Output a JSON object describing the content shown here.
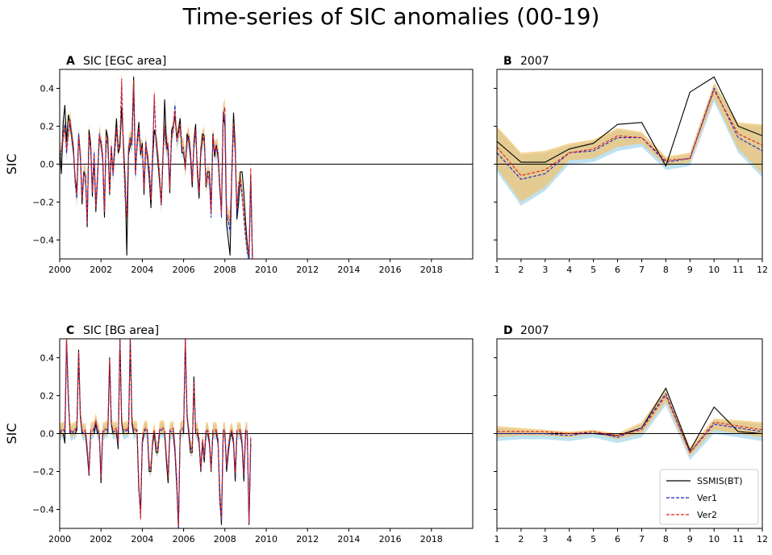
{
  "title": "Time-series of SIC anomalies (00-19)",
  "colors": {
    "ssmis": "#000000",
    "ver1": "#1f1fcc",
    "ver2": "#e0201c",
    "band_ver1": "#a8d8ee",
    "band_ver2": "#f2c26a",
    "band_overlap": "#c9b36c"
  },
  "legend": [
    {
      "label": "SSMIS(BT)",
      "style": "solid",
      "color_key": "ssmis"
    },
    {
      "label": "Ver1",
      "style": "dashed",
      "color_key": "ver1"
    },
    {
      "label": "Ver2",
      "style": "dashed",
      "color_key": "ver2"
    }
  ],
  "chart_data": [
    {
      "id": "A",
      "type": "line",
      "letter": "A",
      "title": "SIC [EGC area]",
      "ylabel": "SIC",
      "xlim": [
        2000,
        2020
      ],
      "ylim": [
        -0.5,
        0.5
      ],
      "xticks": [
        2000,
        2002,
        2004,
        2006,
        2008,
        2010,
        2012,
        2014,
        2016,
        2018
      ],
      "yticks": [
        -0.4,
        -0.2,
        0.0,
        0.2,
        0.4
      ],
      "ytick_labels": [
        "−0.4",
        "−0.2",
        "0.0",
        "0.2",
        "0.4"
      ],
      "x_start": 2000,
      "x_step": 0.0833333,
      "series": [
        {
          "name": "SSMIS(BT)",
          "values": [
            0.08,
            -0.05,
            0.22,
            0.31,
            0.12,
            0.26,
            0.21,
            0.14,
            0.06,
            -0.08,
            -0.14,
            0.15,
            0.05,
            -0.21,
            -0.04,
            -0.06,
            -0.33,
            0.18,
            0.11,
            -0.17,
            0.03,
            -0.25,
            -0.08,
            0.14,
            0.12,
            0.03,
            -0.28,
            0.18,
            0.14,
            -0.16,
            0.08,
            -0.04,
            0.1,
            0.24,
            0.06,
            0.09,
            0.3,
            0.12,
            -0.08,
            -0.48,
            0.05,
            0.1,
            0.14,
            0.46,
            -0.04,
            0.12,
            0.22,
            0.05,
            0.11,
            -0.16,
            0.1,
            0.05,
            -0.07,
            -0.23,
            0.02,
            0.18,
            0.14,
            0.02,
            -0.09,
            -0.21,
            0.03,
            0.34,
            0.12,
            0.07,
            -0.15,
            0.18,
            0.2,
            0.25,
            0.14,
            0.18,
            0.24,
            0.06,
            0.06,
            -0.02,
            0.16,
            0.13,
            0.04,
            -0.12,
            0.12,
            0.21,
            -0.05,
            -0.18,
            0.06,
            0.16,
            0.15,
            -0.12,
            -0.04,
            -0.04,
            -0.24,
            0.16,
            0.04,
            0.1,
            0.04,
            -0.13,
            -0.24,
            0.26,
            0.2,
            -0.32,
            -0.4,
            -0.48,
            -0.05,
            0.27,
            0.1,
            -0.29,
            -0.2,
            -0.04,
            -0.04,
            -0.15,
            -0.3,
            -0.42,
            -0.5,
            -0.05,
            -0.49
          ]
        },
        {
          "name": "Ver1",
          "values": [
            0.04,
            0.06,
            0.14,
            0.21,
            0.06,
            0.17,
            0.22,
            0.16,
            0.08,
            -0.1,
            -0.18,
            0.16,
            0.04,
            -0.17,
            -0.06,
            -0.05,
            -0.3,
            0.14,
            0.08,
            -0.14,
            0.06,
            -0.22,
            -0.06,
            0.16,
            0.1,
            0.04,
            -0.24,
            0.13,
            0.1,
            -0.14,
            0.1,
            -0.06,
            0.07,
            0.18,
            0.09,
            0.12,
            0.41,
            0.08,
            -0.18,
            -0.26,
            0.08,
            0.14,
            0.1,
            0.4,
            -0.06,
            0.1,
            0.18,
            0.08,
            0.08,
            -0.12,
            0.12,
            0.02,
            -0.02,
            -0.18,
            0.06,
            0.35,
            0.1,
            0.05,
            -0.05,
            -0.22,
            0.05,
            0.18,
            0.08,
            0.1,
            -0.12,
            0.14,
            0.18,
            0.31,
            0.12,
            0.16,
            0.2,
            0.08,
            0.08,
            -0.02,
            0.12,
            0.14,
            0.06,
            -0.08,
            0.1,
            0.17,
            -0.02,
            -0.14,
            0.08,
            0.12,
            0.14,
            -0.1,
            -0.06,
            -0.08,
            -0.28,
            0.14,
            0.06,
            0.08,
            0.06,
            -0.1,
            -0.28,
            0.28,
            0.25,
            -0.28,
            -0.3,
            -0.35,
            -0.08,
            0.2,
            0.06,
            -0.26,
            -0.12,
            -0.1,
            -0.16,
            -0.28,
            -0.38,
            -0.46,
            -0.5,
            -0.08,
            -0.5
          ]
        },
        {
          "name": "Ver2",
          "values": [
            0.06,
            0.07,
            0.16,
            0.19,
            0.08,
            0.16,
            0.24,
            0.15,
            0.09,
            -0.09,
            -0.16,
            0.14,
            0.05,
            -0.18,
            -0.05,
            -0.06,
            -0.31,
            0.16,
            0.09,
            -0.15,
            0.05,
            -0.23,
            -0.07,
            0.15,
            0.11,
            0.05,
            -0.25,
            0.15,
            0.11,
            -0.15,
            0.09,
            -0.05,
            0.08,
            0.19,
            0.08,
            0.11,
            0.45,
            0.09,
            -0.15,
            -0.28,
            0.09,
            0.13,
            0.11,
            0.44,
            -0.05,
            0.11,
            0.19,
            0.07,
            0.09,
            -0.13,
            0.11,
            0.03,
            -0.03,
            -0.19,
            0.05,
            0.37,
            0.11,
            0.06,
            -0.06,
            -0.21,
            0.06,
            0.2,
            0.09,
            0.11,
            -0.13,
            0.15,
            0.19,
            0.28,
            0.13,
            0.17,
            0.21,
            0.09,
            0.09,
            -0.03,
            0.13,
            0.15,
            0.07,
            -0.09,
            0.11,
            0.18,
            -0.03,
            -0.15,
            0.09,
            0.13,
            0.15,
            -0.11,
            -0.05,
            -0.07,
            -0.26,
            0.15,
            0.07,
            0.09,
            0.07,
            -0.11,
            -0.26,
            0.27,
            0.3,
            -0.26,
            -0.28,
            -0.3,
            -0.06,
            0.22,
            0.07,
            -0.24,
            -0.1,
            -0.08,
            -0.14,
            -0.26,
            -0.36,
            -0.44,
            -0.48,
            -0.02,
            -0.5
          ]
        }
      ],
      "band_spread": 0.05
    },
    {
      "id": "B",
      "type": "line",
      "letter": "B",
      "title": "2007",
      "xlim": [
        1,
        12
      ],
      "ylim": [
        -0.5,
        0.5
      ],
      "xticks": [
        1,
        2,
        3,
        4,
        5,
        6,
        7,
        8,
        9,
        10,
        11,
        12
      ],
      "yticks": [
        -0.4,
        -0.2,
        0.0,
        0.2,
        0.4
      ],
      "x": [
        1,
        2,
        3,
        4,
        5,
        6,
        7,
        8,
        9,
        10,
        11,
        12
      ],
      "series": [
        {
          "name": "SSMIS(BT)",
          "values": [
            0.12,
            0.01,
            0.01,
            0.08,
            0.11,
            0.21,
            0.22,
            -0.01,
            0.38,
            0.46,
            0.2,
            0.15
          ]
        },
        {
          "name": "Ver1",
          "values": [
            0.06,
            -0.08,
            -0.05,
            0.06,
            0.07,
            0.14,
            0.14,
            0.01,
            0.03,
            0.4,
            0.14,
            0.07
          ]
        },
        {
          "name": "Ver2",
          "values": [
            0.09,
            -0.06,
            -0.03,
            0.06,
            0.08,
            0.15,
            0.14,
            0.02,
            0.03,
            0.39,
            0.16,
            0.1
          ]
        }
      ],
      "band_upper": [
        0.2,
        0.06,
        0.07,
        0.11,
        0.13,
        0.19,
        0.17,
        0.04,
        0.06,
        0.43,
        0.22,
        0.21
      ],
      "band_lower": [
        -0.02,
        -0.2,
        -0.12,
        0.02,
        0.03,
        0.09,
        0.11,
        -0.01,
        0.01,
        0.35,
        0.08,
        -0.05
      ]
    },
    {
      "id": "C",
      "type": "line",
      "letter": "C",
      "title": "SIC [BG area]",
      "ylabel": "SIC",
      "xlim": [
        2000,
        2020
      ],
      "ylim": [
        -0.5,
        0.5
      ],
      "xticks": [
        2000,
        2002,
        2004,
        2006,
        2008,
        2010,
        2012,
        2014,
        2016,
        2018
      ],
      "yticks": [
        -0.4,
        -0.2,
        0.0,
        0.2,
        0.4
      ],
      "ytick_labels": [
        "−0.4",
        "−0.2",
        "0.0",
        "0.2",
        "0.4"
      ],
      "x_start": 2000,
      "x_step": 0.0833333,
      "series": [
        {
          "name": "SSMIS(BT)",
          "values": [
            0.0,
            0.0,
            0.0,
            -0.05,
            0.5,
            0.2,
            0.0,
            0.0,
            0.0,
            0.0,
            0.02,
            0.44,
            0.1,
            0.0,
            0.0,
            0.0,
            -0.1,
            -0.22,
            0.0,
            0.0,
            0.0,
            0.05,
            0.0,
            0.0,
            -0.26,
            0.0,
            0.0,
            0.0,
            0.0,
            0.4,
            0.05,
            0.0,
            0.0,
            0.0,
            -0.08,
            0.5,
            0.06,
            0.0,
            0.0,
            0.0,
            0.0,
            0.5,
            0.05,
            0.0,
            0.0,
            0.0,
            -0.3,
            -0.4,
            -0.05,
            0.0,
            0.0,
            0.0,
            -0.2,
            -0.2,
            -0.05,
            0.0,
            -0.1,
            -0.1,
            0.0,
            0.0,
            0.0,
            0.0,
            -0.15,
            -0.26,
            0.0,
            0.0,
            0.0,
            -0.1,
            -0.28,
            -0.5,
            0.0,
            0.0,
            0.0,
            0.5,
            0.1,
            0.0,
            -0.1,
            -0.1,
            0.3,
            0.0,
            0.0,
            -0.05,
            -0.2,
            -0.05,
            -0.15,
            0.0,
            0.0,
            -0.05,
            -0.2,
            0.0,
            0.0,
            0.0,
            -0.05,
            -0.3,
            -0.48,
            0.0,
            0.0,
            -0.2,
            -0.1,
            -0.02,
            0.0,
            -0.05,
            -0.25,
            0.0,
            0.0,
            0.0,
            -0.06,
            -0.25,
            0.0,
            0.0,
            -0.48,
            -0.05
          ]
        },
        {
          "name": "Ver1",
          "values": [
            0.0,
            0.01,
            0.02,
            0.01,
            0.48,
            0.18,
            0.01,
            0.0,
            0.01,
            0.01,
            0.03,
            0.42,
            0.08,
            0.01,
            0.0,
            0.01,
            -0.08,
            -0.2,
            0.01,
            0.01,
            0.02,
            0.06,
            0.01,
            0.0,
            -0.22,
            0.01,
            0.01,
            0.02,
            0.02,
            0.38,
            0.04,
            0.01,
            0.01,
            0.02,
            -0.06,
            0.49,
            0.05,
            0.01,
            0.01,
            0.02,
            0.01,
            0.49,
            0.06,
            0.01,
            0.02,
            0.01,
            -0.28,
            -0.44,
            -0.04,
            0.01,
            0.02,
            0.01,
            -0.18,
            -0.18,
            -0.04,
            0.01,
            -0.08,
            -0.08,
            0.01,
            0.02,
            0.02,
            0.01,
            -0.13,
            -0.22,
            0.01,
            0.01,
            0.02,
            -0.08,
            -0.24,
            -0.5,
            0.01,
            0.02,
            0.02,
            0.49,
            0.08,
            0.01,
            -0.08,
            -0.08,
            0.26,
            0.01,
            0.01,
            -0.04,
            -0.18,
            -0.04,
            -0.12,
            0.01,
            0.01,
            -0.04,
            -0.18,
            0.01,
            0.01,
            0.01,
            -0.04,
            -0.36,
            -0.46,
            0.01,
            0.01,
            -0.18,
            -0.08,
            -0.01,
            0.01,
            -0.04,
            -0.22,
            0.01,
            0.01,
            0.01,
            -0.05,
            -0.22,
            0.01,
            0.01,
            -0.48,
            -0.02
          ]
        },
        {
          "name": "Ver2",
          "values": [
            0.01,
            0.02,
            0.02,
            0.02,
            0.5,
            0.17,
            0.02,
            0.01,
            0.02,
            0.02,
            0.04,
            0.43,
            0.09,
            0.02,
            0.01,
            0.02,
            -0.07,
            -0.21,
            0.02,
            0.02,
            0.03,
            0.07,
            0.02,
            0.01,
            -0.23,
            0.02,
            0.02,
            0.03,
            0.03,
            0.39,
            0.05,
            0.02,
            0.02,
            0.03,
            -0.05,
            0.5,
            0.06,
            0.02,
            0.02,
            0.03,
            0.02,
            0.5,
            0.07,
            0.02,
            0.03,
            0.02,
            -0.27,
            -0.45,
            -0.03,
            0.02,
            0.03,
            0.02,
            -0.17,
            -0.19,
            -0.03,
            0.02,
            -0.07,
            -0.09,
            0.02,
            0.03,
            0.03,
            0.02,
            -0.12,
            -0.23,
            0.02,
            0.02,
            0.03,
            -0.07,
            -0.25,
            -0.49,
            0.02,
            0.03,
            0.03,
            0.5,
            0.09,
            0.02,
            -0.07,
            -0.09,
            0.27,
            0.02,
            0.02,
            -0.03,
            -0.19,
            -0.03,
            -0.13,
            0.02,
            0.02,
            -0.03,
            -0.19,
            0.02,
            0.02,
            0.02,
            -0.03,
            -0.34,
            -0.45,
            0.02,
            0.02,
            -0.17,
            -0.07,
            0.0,
            0.02,
            -0.03,
            -0.21,
            0.02,
            0.02,
            0.02,
            -0.04,
            -0.21,
            0.02,
            0.02,
            -0.47,
            -0.01
          ]
        }
      ],
      "band_spread": 0.04
    },
    {
      "id": "D",
      "type": "line",
      "letter": "D",
      "title": "2007",
      "xlim": [
        1,
        12
      ],
      "ylim": [
        -0.5,
        0.5
      ],
      "xticks": [
        1,
        2,
        3,
        4,
        5,
        6,
        7,
        8,
        9,
        10,
        11,
        12
      ],
      "yticks": [
        -0.4,
        -0.2,
        0.0,
        0.2,
        0.4
      ],
      "x": [
        1,
        2,
        3,
        4,
        5,
        6,
        7,
        8,
        9,
        10,
        11,
        12
      ],
      "series": [
        {
          "name": "SSMIS(BT)",
          "values": [
            0.0,
            0.0,
            0.0,
            0.0,
            0.0,
            -0.01,
            0.03,
            0.24,
            -0.09,
            0.14,
            0.01,
            0.0
          ]
        },
        {
          "name": "Ver1",
          "values": [
            0.0,
            0.0,
            0.0,
            -0.01,
            0.01,
            -0.02,
            0.03,
            0.21,
            -0.1,
            0.05,
            0.03,
            0.01
          ]
        },
        {
          "name": "Ver2",
          "values": [
            0.01,
            0.01,
            0.01,
            0.0,
            0.01,
            -0.01,
            0.02,
            0.2,
            -0.1,
            0.06,
            0.04,
            0.02
          ]
        }
      ],
      "band_upper": [
        0.04,
        0.03,
        0.02,
        0.01,
        0.02,
        0.0,
        0.06,
        0.24,
        -0.07,
        0.08,
        0.07,
        0.06
      ],
      "band_lower": [
        -0.02,
        -0.01,
        -0.01,
        -0.02,
        0.0,
        -0.03,
        0.0,
        0.17,
        -0.12,
        0.02,
        0.0,
        -0.02
      ]
    }
  ]
}
